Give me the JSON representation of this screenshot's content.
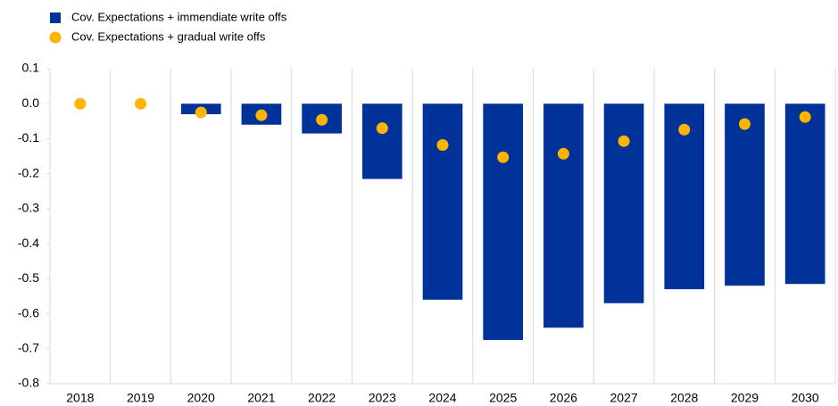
{
  "chart_data": {
    "type": "bar",
    "categories": [
      "2018",
      "2019",
      "2020",
      "2021",
      "2022",
      "2023",
      "2024",
      "2025",
      "2026",
      "2027",
      "2028",
      "2029",
      "2030"
    ],
    "series": [
      {
        "name": "Cov. Expectations + immendiate write offs",
        "type": "bar",
        "color": "#003299",
        "values": [
          0,
          0,
          -0.03,
          -0.06,
          -0.085,
          -0.215,
          -0.56,
          -0.675,
          -0.64,
          -0.57,
          -0.53,
          -0.52,
          -0.515
        ]
      },
      {
        "name": "Cov. Expectations + gradual write offs",
        "type": "scatter",
        "color": "#ffb400",
        "values": [
          0,
          0,
          -0.025,
          -0.033,
          -0.046,
          -0.07,
          -0.118,
          -0.153,
          -0.143,
          -0.107,
          -0.074,
          -0.058,
          -0.038
        ]
      }
    ],
    "ylim": [
      -0.8,
      0.1
    ],
    "yticks": [
      0.1,
      {
        "value": 0,
        "label": "0.0"
      },
      -0.1,
      -0.2,
      -0.3,
      -0.4,
      -0.5,
      -0.6,
      -0.7,
      -0.8
    ],
    "grid": true
  }
}
